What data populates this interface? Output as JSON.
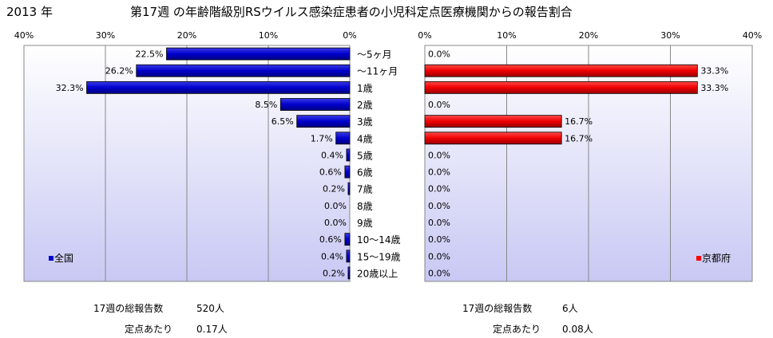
{
  "year_label": "2013 年",
  "title": "第17週 の年齢階級別RSウイルス感染症患者の小児科定点医療機関からの報告割合",
  "chart_data": [
    {
      "type": "bar",
      "orientation": "horizontal",
      "direction": "right-to-left",
      "legend": "全国",
      "legend_placement": "bottom-left",
      "color": "#0000cc",
      "xlim": [
        0,
        40
      ],
      "x_ticks": [
        "40%",
        "30%",
        "20%",
        "10%",
        "0%"
      ],
      "categories": [
        "～5ヶ月",
        "～11ヶ月",
        "1歳",
        "2歳",
        "3歳",
        "4歳",
        "5歳",
        "6歳",
        "7歳",
        "8歳",
        "9歳",
        "10～14歳",
        "15～19歳",
        "20歳以上"
      ],
      "values": [
        22.5,
        26.2,
        32.3,
        8.5,
        6.5,
        1.7,
        0.4,
        0.6,
        0.2,
        0.0,
        0.0,
        0.6,
        0.4,
        0.2
      ],
      "labels": [
        "22.5%",
        "26.2%",
        "32.3%",
        "8.5%",
        "6.5%",
        "1.7%",
        "0.4%",
        "0.6%",
        "0.2%",
        "0.0%",
        "0.0%",
        "0.6%",
        "0.4%",
        "0.2%"
      ],
      "grid": true
    },
    {
      "type": "bar",
      "orientation": "horizontal",
      "direction": "left-to-right",
      "legend": "京都府",
      "legend_placement": "bottom-right",
      "color": "#ff0000",
      "xlim": [
        0,
        40
      ],
      "x_ticks": [
        "0%",
        "10%",
        "20%",
        "30%",
        "40%"
      ],
      "values": [
        0.0,
        33.3,
        33.3,
        0.0,
        16.7,
        16.7,
        0.0,
        0.0,
        0.0,
        0.0,
        0.0,
        0.0,
        0.0,
        0.0
      ],
      "labels": [
        "0.0%",
        "33.3%",
        "33.3%",
        "0.0%",
        "16.7%",
        "16.7%",
        "0.0%",
        "0.0%",
        "0.0%",
        "0.0%",
        "0.0%",
        "0.0%",
        "0.0%",
        "0.0%"
      ],
      "grid": true
    }
  ],
  "stats": {
    "national_total_label": "17週の総報告数",
    "national_total_value": "520人",
    "national_per_label": "定点あたり",
    "national_per_value": "0.17人",
    "kyoto_total_label": "17週の総報告数",
    "kyoto_total_value": "6人",
    "kyoto_per_label": "定点あたり",
    "kyoto_per_value": "0.08人"
  }
}
